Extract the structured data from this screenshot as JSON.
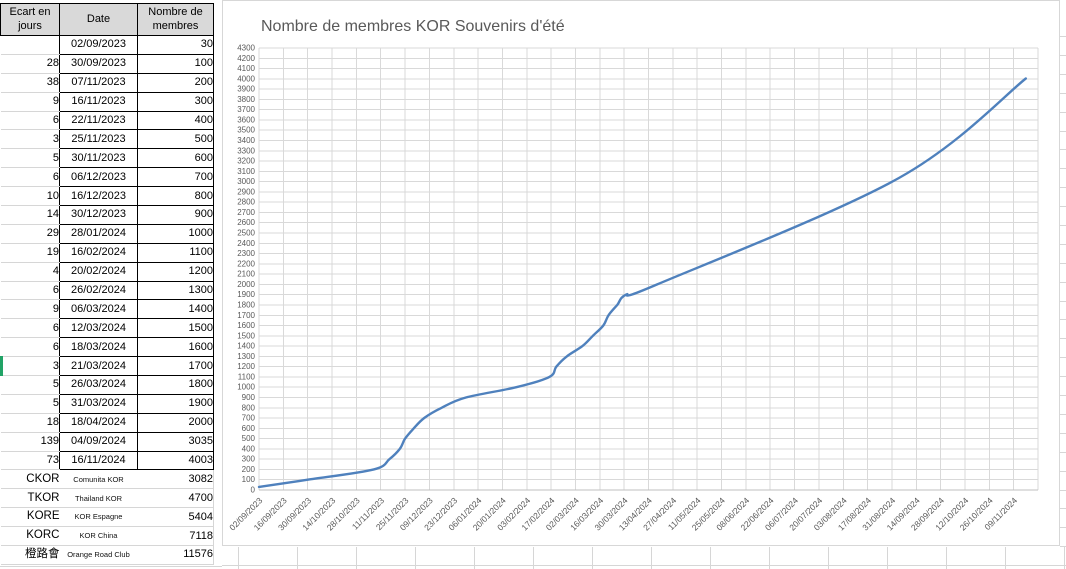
{
  "table": {
    "headers": [
      "Ecart en jours",
      "Date",
      "Nombre de membres"
    ],
    "rows": [
      {
        "ecart": "",
        "date": "02/09/2023",
        "membres": "30"
      },
      {
        "ecart": "28",
        "date": "30/09/2023",
        "membres": "100"
      },
      {
        "ecart": "38",
        "date": "07/11/2023",
        "membres": "200"
      },
      {
        "ecart": "9",
        "date": "16/11/2023",
        "membres": "300"
      },
      {
        "ecart": "6",
        "date": "22/11/2023",
        "membres": "400"
      },
      {
        "ecart": "3",
        "date": "25/11/2023",
        "membres": "500"
      },
      {
        "ecart": "5",
        "date": "30/11/2023",
        "membres": "600"
      },
      {
        "ecart": "6",
        "date": "06/12/2023",
        "membres": "700"
      },
      {
        "ecart": "10",
        "date": "16/12/2023",
        "membres": "800"
      },
      {
        "ecart": "14",
        "date": "30/12/2023",
        "membres": "900"
      },
      {
        "ecart": "29",
        "date": "28/01/2024",
        "membres": "1000"
      },
      {
        "ecart": "19",
        "date": "16/02/2024",
        "membres": "1100"
      },
      {
        "ecart": "4",
        "date": "20/02/2024",
        "membres": "1200"
      },
      {
        "ecart": "6",
        "date": "26/02/2024",
        "membres": "1300"
      },
      {
        "ecart": "9",
        "date": "06/03/2024",
        "membres": "1400"
      },
      {
        "ecart": "6",
        "date": "12/03/2024",
        "membres": "1500"
      },
      {
        "ecart": "6",
        "date": "18/03/2024",
        "membres": "1600"
      },
      {
        "ecart": "3",
        "date": "21/03/2024",
        "membres": "1700"
      },
      {
        "ecart": "5",
        "date": "26/03/2024",
        "membres": "1800"
      },
      {
        "ecart": "5",
        "date": "31/03/2024",
        "membres": "1900"
      },
      {
        "ecart": "18",
        "date": "18/04/2024",
        "membres": "2000"
      },
      {
        "ecart": "139",
        "date": "04/09/2024",
        "membres": "3035"
      },
      {
        "ecart": "73",
        "date": "16/11/2024",
        "membres": "4003"
      }
    ],
    "selected_row_index": 17,
    "extra_rows": [
      {
        "code": "CKOR",
        "name": "Comunita KOR",
        "membres": "3082"
      },
      {
        "code": "TKOR",
        "name": "Thailand KOR",
        "membres": "4700"
      },
      {
        "code": "KORE",
        "name": "KOR Espagne",
        "membres": "5404"
      },
      {
        "code": "KORC",
        "name": "KOR China",
        "membres": "7118"
      },
      {
        "code": "橙路會",
        "name": "Orange Road Club",
        "membres": "11576"
      }
    ]
  },
  "chart_data": {
    "type": "line",
    "title": "Nombre de membres KOR Souvenirs d'été",
    "x": [
      "02/09/2023",
      "30/09/2023",
      "07/11/2023",
      "16/11/2023",
      "22/11/2023",
      "25/11/2023",
      "30/11/2023",
      "06/12/2023",
      "16/12/2023",
      "30/12/2023",
      "28/01/2024",
      "16/02/2024",
      "20/02/2024",
      "26/02/2024",
      "06/03/2024",
      "12/03/2024",
      "18/03/2024",
      "21/03/2024",
      "26/03/2024",
      "31/03/2024",
      "18/04/2024",
      "04/09/2024",
      "16/11/2024"
    ],
    "values": [
      30,
      100,
      200,
      300,
      400,
      500,
      600,
      700,
      800,
      900,
      1000,
      1100,
      1200,
      1300,
      1400,
      1500,
      1600,
      1700,
      1800,
      1900,
      2000,
      3035,
      4003
    ],
    "x_tick_labels": [
      "02/09/2023",
      "16/09/2023",
      "30/09/2023",
      "14/10/2023",
      "28/10/2023",
      "11/11/2023",
      "25/11/2023",
      "09/12/2023",
      "23/12/2023",
      "06/01/2024",
      "20/01/2024",
      "03/02/2024",
      "17/02/2024",
      "02/03/2024",
      "16/03/2024",
      "30/03/2024",
      "13/04/2024",
      "27/04/2024",
      "11/05/2024",
      "25/05/2024",
      "08/06/2024",
      "22/06/2024",
      "06/07/2024",
      "20/07/2024",
      "03/08/2024",
      "17/08/2024",
      "31/08/2024",
      "14/09/2024",
      "28/09/2024",
      "12/10/2024",
      "26/10/2024",
      "09/11/2024"
    ],
    "x_tick_interval_days": 14,
    "ylim": [
      0,
      4300
    ],
    "y_tick_step": 100,
    "grid": true,
    "legend": false,
    "smoothed": true,
    "line_color": "#4F81BD"
  },
  "colors": {
    "grid": "#D9D9D9",
    "axis_line": "#BFBFBF",
    "axis_text": "#595959",
    "header_fill": "#D9D9D9",
    "table_border": "#000000",
    "sheet_gridline": "#D6D6D6",
    "selection_green": "#21A366",
    "chart_frame": "#D7D7D7"
  }
}
